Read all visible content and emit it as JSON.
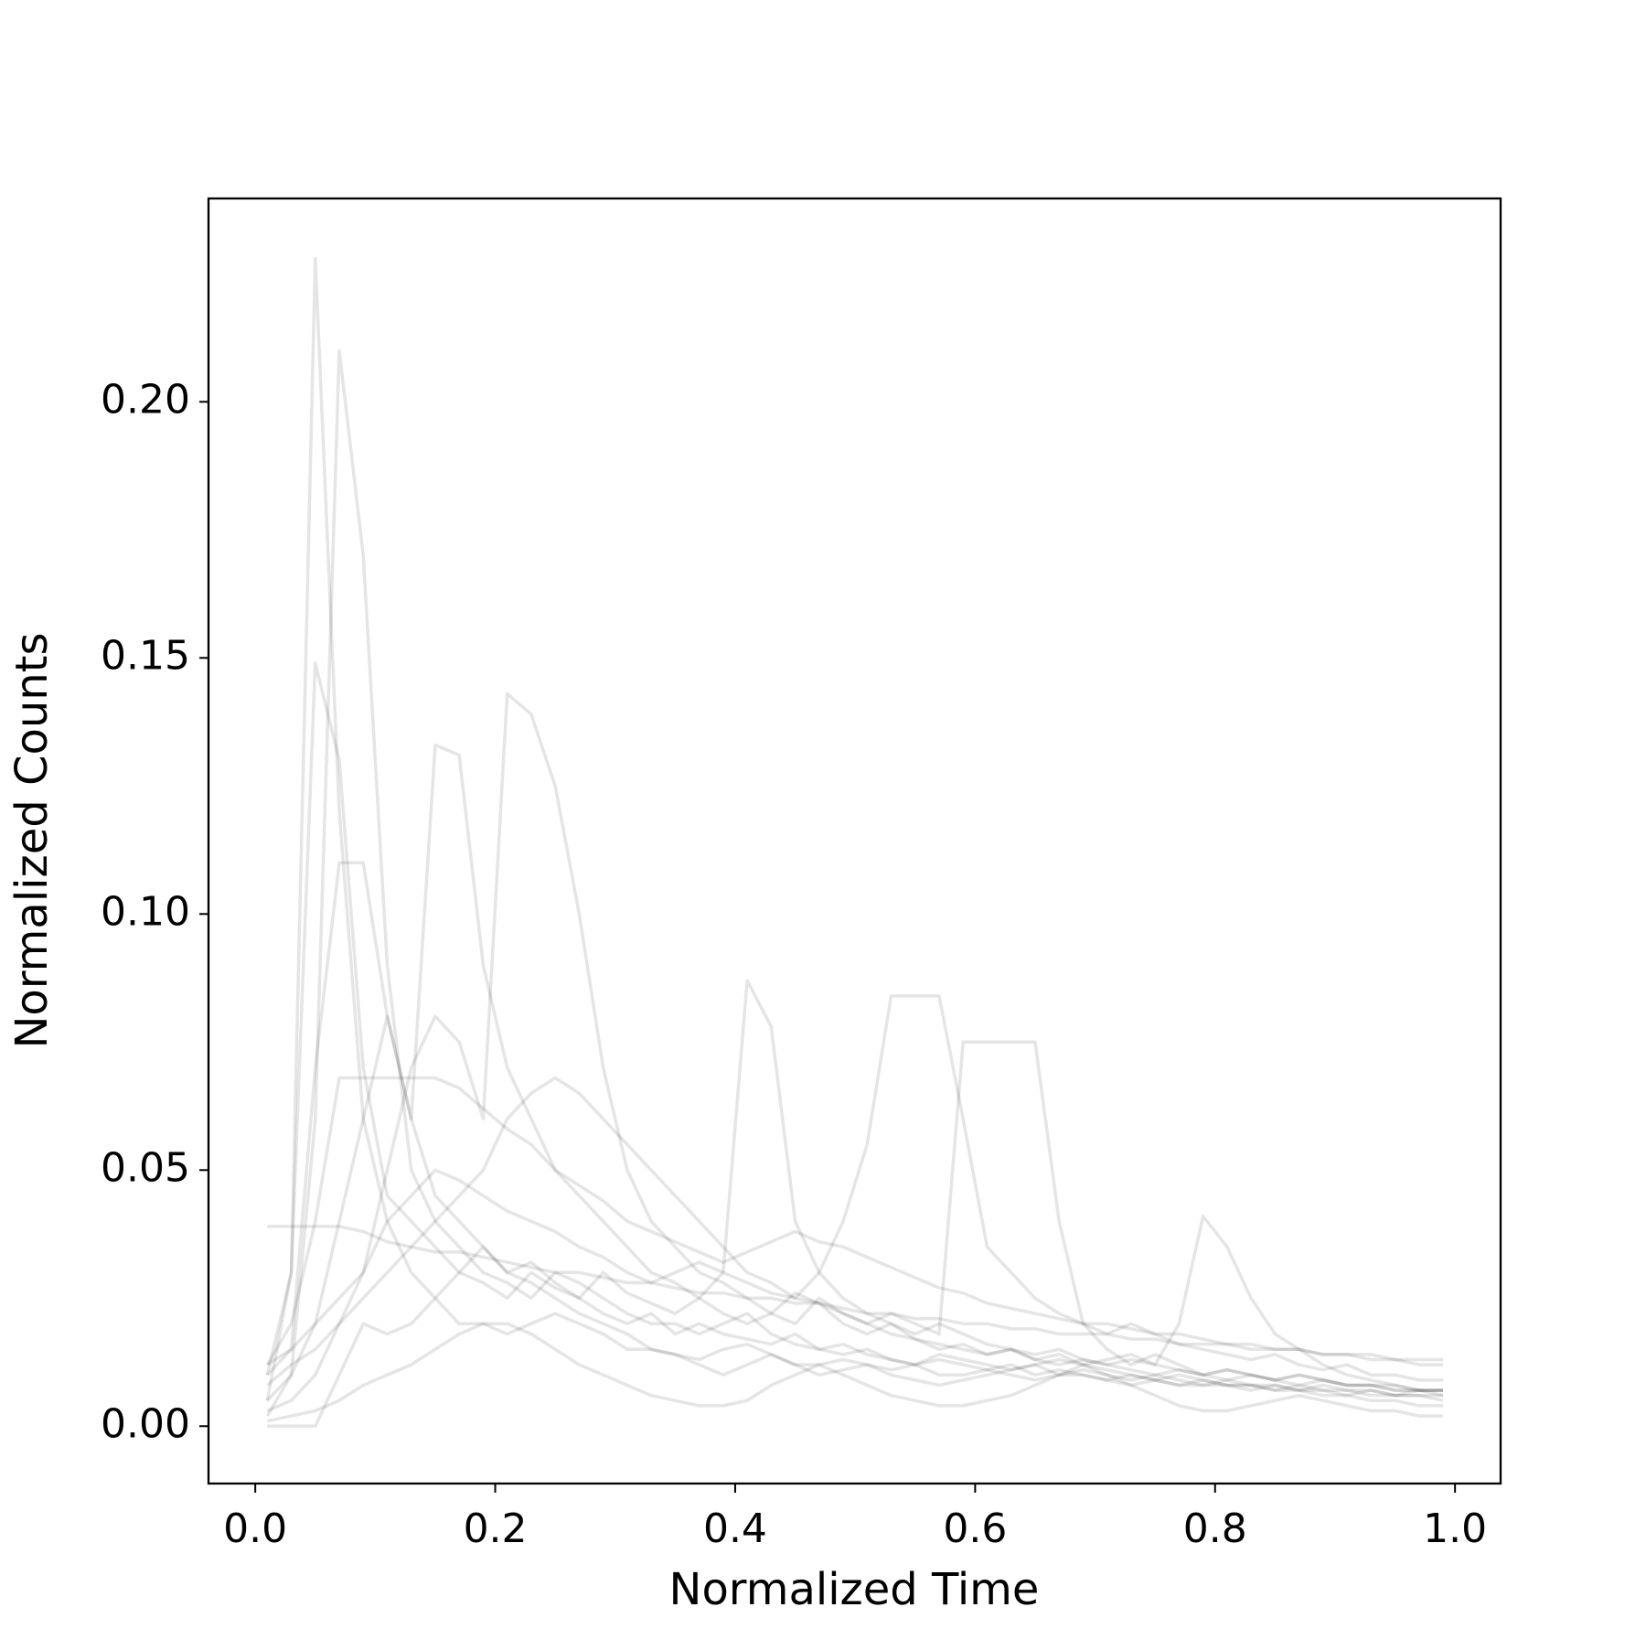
{
  "chart_data": {
    "type": "line",
    "xlabel": "Normalized Time",
    "ylabel": "Normalized Counts",
    "x": [
      0.01,
      0.03,
      0.05,
      0.07,
      0.09,
      0.11,
      0.13,
      0.15,
      0.17,
      0.19,
      0.21,
      0.23,
      0.25,
      0.27,
      0.29,
      0.31,
      0.33,
      0.35,
      0.37,
      0.39,
      0.41,
      0.43,
      0.45,
      0.47,
      0.49,
      0.51,
      0.53,
      0.55,
      0.57,
      0.59,
      0.61,
      0.63,
      0.65,
      0.67,
      0.69,
      0.71,
      0.73,
      0.75,
      0.77,
      0.79,
      0.81,
      0.83,
      0.85,
      0.87,
      0.89,
      0.91,
      0.93,
      0.95,
      0.97,
      0.99
    ],
    "series": [
      {
        "color": "#0000001a",
        "values": [
          0.005,
          0.03,
          0.228,
          0.12,
          0.06,
          0.04,
          0.03,
          0.025,
          0.02,
          0.02,
          0.018,
          0.02,
          0.022,
          0.02,
          0.018,
          0.015,
          0.015,
          0.014,
          0.013,
          0.015,
          0.016,
          0.014,
          0.012,
          0.012,
          0.013,
          0.012,
          0.011,
          0.012,
          0.01,
          0.01,
          0.011,
          0.01,
          0.009,
          0.01,
          0.01,
          0.009,
          0.008,
          0.009,
          0.008,
          0.008,
          0.008,
          0.007,
          0.008,
          0.007,
          0.007,
          0.006,
          0.007,
          0.006,
          0.006,
          0.006
        ]
      },
      {
        "color": "#0000001a",
        "values": [
          0.002,
          0.01,
          0.06,
          0.21,
          0.17,
          0.09,
          0.05,
          0.04,
          0.035,
          0.03,
          0.028,
          0.025,
          0.03,
          0.028,
          0.025,
          0.022,
          0.02,
          0.02,
          0.018,
          0.02,
          0.022,
          0.018,
          0.016,
          0.015,
          0.016,
          0.014,
          0.013,
          0.012,
          0.014,
          0.013,
          0.012,
          0.011,
          0.012,
          0.01,
          0.011,
          0.01,
          0.009,
          0.01,
          0.009,
          0.008,
          0.009,
          0.008,
          0.008,
          0.007,
          0.008,
          0.007,
          0.007,
          0.006,
          0.007,
          0.006
        ]
      },
      {
        "color": "#0000001a",
        "values": [
          0.01,
          0.03,
          0.149,
          0.13,
          0.07,
          0.045,
          0.04,
          0.035,
          0.03,
          0.028,
          0.025,
          0.03,
          0.027,
          0.025,
          0.022,
          0.02,
          0.022,
          0.018,
          0.02,
          0.018,
          0.017,
          0.016,
          0.018,
          0.015,
          0.014,
          0.015,
          0.013,
          0.012,
          0.013,
          0.012,
          0.011,
          0.012,
          0.01,
          0.011,
          0.01,
          0.009,
          0.01,
          0.009,
          0.008,
          0.009,
          0.008,
          0.008,
          0.007,
          0.008,
          0.007,
          0.007,
          0.006,
          0.006,
          0.006,
          0.005
        ]
      },
      {
        "color": "#0000001a",
        "values": [
          0.003,
          0.005,
          0.01,
          0.02,
          0.03,
          0.05,
          0.07,
          0.08,
          0.075,
          0.06,
          0.143,
          0.139,
          0.125,
          0.1,
          0.07,
          0.05,
          0.04,
          0.035,
          0.03,
          0.028,
          0.025,
          0.022,
          0.02,
          0.025,
          0.022,
          0.02,
          0.018,
          0.017,
          0.016,
          0.015,
          0.014,
          0.015,
          0.013,
          0.012,
          0.013,
          0.012,
          0.011,
          0.01,
          0.011,
          0.01,
          0.009,
          0.01,
          0.009,
          0.008,
          0.009,
          0.008,
          0.008,
          0.007,
          0.007,
          0.007
        ]
      },
      {
        "color": "#0000001a",
        "values": [
          0.005,
          0.01,
          0.02,
          0.04,
          0.06,
          0.08,
          0.06,
          0.133,
          0.131,
          0.09,
          0.07,
          0.06,
          0.05,
          0.045,
          0.04,
          0.035,
          0.03,
          0.028,
          0.025,
          0.03,
          0.087,
          0.078,
          0.04,
          0.03,
          0.025,
          0.022,
          0.02,
          0.018,
          0.02,
          0.018,
          0.016,
          0.015,
          0.014,
          0.015,
          0.013,
          0.012,
          0.013,
          0.012,
          0.011,
          0.01,
          0.011,
          0.01,
          0.009,
          0.01,
          0.009,
          0.008,
          0.008,
          0.008,
          0.007,
          0.007
        ]
      },
      {
        "color": "#0000001a",
        "values": [
          0.008,
          0.012,
          0.015,
          0.02,
          0.025,
          0.03,
          0.035,
          0.04,
          0.045,
          0.05,
          0.06,
          0.065,
          0.068,
          0.065,
          0.06,
          0.055,
          0.05,
          0.045,
          0.04,
          0.035,
          0.03,
          0.028,
          0.025,
          0.03,
          0.04,
          0.055,
          0.084,
          0.084,
          0.084,
          0.06,
          0.035,
          0.03,
          0.025,
          0.022,
          0.02,
          0.018,
          0.02,
          0.018,
          0.016,
          0.015,
          0.014,
          0.013,
          0.014,
          0.012,
          0.011,
          0.012,
          0.01,
          0.01,
          0.009,
          0.009
        ]
      },
      {
        "color": "#0000001a",
        "values": [
          0.012,
          0.015,
          0.02,
          0.025,
          0.03,
          0.04,
          0.045,
          0.05,
          0.048,
          0.045,
          0.042,
          0.04,
          0.038,
          0.035,
          0.033,
          0.03,
          0.028,
          0.03,
          0.032,
          0.03,
          0.028,
          0.026,
          0.025,
          0.024,
          0.022,
          0.02,
          0.022,
          0.02,
          0.018,
          0.075,
          0.075,
          0.075,
          0.075,
          0.04,
          0.02,
          0.015,
          0.012,
          0.014,
          0.012,
          0.01,
          0.011,
          0.01,
          0.009,
          0.01,
          0.009,
          0.008,
          0.008,
          0.007,
          0.007,
          0.007
        ]
      },
      {
        "color": "#0000001a",
        "values": [
          0.039,
          0.039,
          0.039,
          0.039,
          0.038,
          0.036,
          0.035,
          0.034,
          0.034,
          0.033,
          0.032,
          0.031,
          0.03,
          0.03,
          0.029,
          0.028,
          0.028,
          0.027,
          0.026,
          0.026,
          0.025,
          0.025,
          0.024,
          0.024,
          0.023,
          0.022,
          0.022,
          0.021,
          0.021,
          0.02,
          0.02,
          0.019,
          0.019,
          0.018,
          0.018,
          0.018,
          0.017,
          0.017,
          0.016,
          0.016,
          0.016,
          0.015,
          0.015,
          0.015,
          0.014,
          0.014,
          0.014,
          0.013,
          0.013,
          0.013
        ]
      },
      {
        "color": "#0000001a",
        "values": [
          0.001,
          0.002,
          0.003,
          0.005,
          0.008,
          0.01,
          0.012,
          0.015,
          0.018,
          0.02,
          0.02,
          0.018,
          0.015,
          0.012,
          0.01,
          0.008,
          0.006,
          0.005,
          0.004,
          0.004,
          0.005,
          0.008,
          0.01,
          0.012,
          0.01,
          0.008,
          0.006,
          0.005,
          0.004,
          0.004,
          0.005,
          0.006,
          0.008,
          0.01,
          0.012,
          0.01,
          0.008,
          0.006,
          0.004,
          0.003,
          0.003,
          0.004,
          0.005,
          0.006,
          0.005,
          0.004,
          0.003,
          0.003,
          0.002,
          0.002
        ]
      },
      {
        "color": "#0000001a",
        "values": [
          0.01,
          0.015,
          0.07,
          0.11,
          0.11,
          0.08,
          0.06,
          0.045,
          0.04,
          0.035,
          0.03,
          0.032,
          0.028,
          0.025,
          0.03,
          0.026,
          0.024,
          0.022,
          0.025,
          0.022,
          0.02,
          0.022,
          0.026,
          0.024,
          0.02,
          0.018,
          0.02,
          0.017,
          0.015,
          0.016,
          0.014,
          0.015,
          0.013,
          0.014,
          0.012,
          0.013,
          0.014,
          0.012,
          0.02,
          0.041,
          0.035,
          0.025,
          0.018,
          0.015,
          0.012,
          0.01,
          0.009,
          0.008,
          0.007,
          0.007
        ]
      },
      {
        "color": "#0000001a",
        "values": [
          0.012,
          0.02,
          0.04,
          0.068,
          0.068,
          0.068,
          0.068,
          0.068,
          0.066,
          0.062,
          0.058,
          0.055,
          0.05,
          0.047,
          0.044,
          0.04,
          0.038,
          0.036,
          0.034,
          0.032,
          0.034,
          0.036,
          0.038,
          0.036,
          0.035,
          0.033,
          0.031,
          0.029,
          0.027,
          0.026,
          0.024,
          0.023,
          0.022,
          0.021,
          0.02,
          0.02,
          0.019,
          0.018,
          0.018,
          0.017,
          0.016,
          0.016,
          0.015,
          0.015,
          0.014,
          0.014,
          0.013,
          0.013,
          0.012,
          0.012
        ]
      },
      {
        "color": "#0000001a",
        "values": [
          0.0,
          0.0,
          0.0,
          0.01,
          0.02,
          0.018,
          0.02,
          0.025,
          0.03,
          0.035,
          0.03,
          0.028,
          0.025,
          0.022,
          0.02,
          0.018,
          0.015,
          0.014,
          0.012,
          0.01,
          0.012,
          0.014,
          0.012,
          0.01,
          0.011,
          0.012,
          0.01,
          0.009,
          0.008,
          0.009,
          0.01,
          0.011,
          0.012,
          0.013,
          0.012,
          0.011,
          0.01,
          0.009,
          0.01,
          0.009,
          0.008,
          0.008,
          0.007,
          0.007,
          0.006,
          0.006,
          0.005,
          0.005,
          0.004,
          0.004
        ]
      }
    ],
    "xlim": [
      -0.039,
      1.038
    ],
    "xticks": [
      {
        "value": 0,
        "label": "0.0"
      },
      0.2,
      0.4,
      0.6,
      0.8,
      {
        "value": 1,
        "label": "1.0"
      }
    ],
    "ylim": [
      -0.0112,
      0.2397
    ],
    "yticks": [
      {
        "value": 0,
        "label": "0.00"
      },
      0.05,
      {
        "value": 0.1,
        "label": "0.10"
      },
      0.15,
      {
        "value": 0.2,
        "label": "0.20"
      }
    ]
  }
}
